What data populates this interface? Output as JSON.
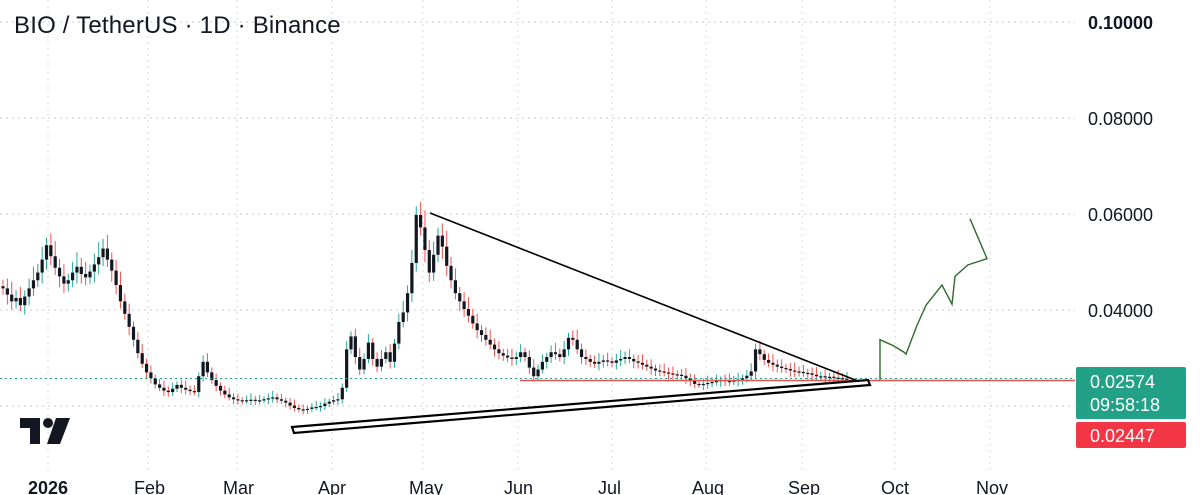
{
  "title": "BIO / TetherUS · 1D · Binance",
  "colors": {
    "up": "#26a69a",
    "down": "#ef5350",
    "wick": "#000000",
    "price_badge": "#22a186",
    "alert_badge": "#f23645",
    "support": "#e05555",
    "trendline": "#000000",
    "projection": "#2e6b2e"
  },
  "price_badge": {
    "price": "0.02574",
    "countdown": "09:58:18"
  },
  "alert_badge": {
    "price": "0.02447"
  },
  "logo": "TV",
  "chart_data": {
    "type": "candlestick",
    "ylim": [
      0.016,
      0.1
    ],
    "yticks": [
      {
        "value": 0.1,
        "label": "0.10000",
        "bold": true
      },
      {
        "value": 0.08,
        "label": "0.08000",
        "bold": false
      },
      {
        "value": 0.06,
        "label": "0.06000",
        "bold": false
      },
      {
        "value": 0.04,
        "label": "0.04000",
        "bold": false
      }
    ],
    "xticks": [
      {
        "label": "2026",
        "bold": true
      },
      {
        "label": "Feb",
        "bold": false
      },
      {
        "label": "Mar",
        "bold": false
      },
      {
        "label": "Apr",
        "bold": false
      },
      {
        "label": "May",
        "bold": false
      },
      {
        "label": "Jun",
        "bold": false
      },
      {
        "label": "Jul",
        "bold": false
      },
      {
        "label": "Aug",
        "bold": false
      },
      {
        "label": "Sep",
        "bold": false
      },
      {
        "label": "Oct",
        "bold": false
      },
      {
        "label": "Nov",
        "bold": false
      }
    ],
    "grid": true,
    "close_series": [
      0.0445,
      0.0432,
      0.0418,
      0.0425,
      0.041,
      0.0428,
      0.0445,
      0.0462,
      0.0478,
      0.0505,
      0.0535,
      0.0512,
      0.0488,
      0.047,
      0.0455,
      0.0462,
      0.0478,
      0.049,
      0.0475,
      0.0468,
      0.048,
      0.0495,
      0.051,
      0.0528,
      0.0505,
      0.0482,
      0.0452,
      0.0418,
      0.0392,
      0.0365,
      0.0338,
      0.031,
      0.0288,
      0.027,
      0.0258,
      0.0245,
      0.0238,
      0.0232,
      0.0229,
      0.0236,
      0.0244,
      0.0238,
      0.0234,
      0.0231,
      0.0229,
      0.0262,
      0.0292,
      0.027,
      0.0254,
      0.0242,
      0.0232,
      0.0224,
      0.0218,
      0.0214,
      0.0212,
      0.0211,
      0.0212,
      0.0213,
      0.0211,
      0.0212,
      0.0214,
      0.0216,
      0.0218,
      0.0214,
      0.0211,
      0.0207,
      0.0201,
      0.0196,
      0.0193,
      0.0192,
      0.0194,
      0.0197,
      0.0198,
      0.02,
      0.0205,
      0.0209,
      0.0212,
      0.0214,
      0.0238,
      0.0318,
      0.0345,
      0.0302,
      0.0276,
      0.0298,
      0.0332,
      0.0298,
      0.0282,
      0.0298,
      0.0312,
      0.0292,
      0.033,
      0.0375,
      0.0395,
      0.0435,
      0.0498,
      0.0598,
      0.0572,
      0.0525,
      0.0478,
      0.0515,
      0.0555,
      0.0532,
      0.0492,
      0.0462,
      0.0435,
      0.0418,
      0.0402,
      0.0388,
      0.0372,
      0.0358,
      0.0348,
      0.0338,
      0.0328,
      0.0318,
      0.031,
      0.0305,
      0.0301,
      0.0298,
      0.0302,
      0.0312,
      0.0302,
      0.028,
      0.0262,
      0.0276,
      0.0292,
      0.0302,
      0.0312,
      0.0308,
      0.0302,
      0.0318,
      0.0342,
      0.0338,
      0.0318,
      0.0302,
      0.0298,
      0.0292,
      0.0288,
      0.0292,
      0.0295,
      0.0293,
      0.029,
      0.0295,
      0.0298,
      0.0302,
      0.0298,
      0.0293,
      0.029,
      0.0286,
      0.0282,
      0.0278,
      0.0274,
      0.0272,
      0.027,
      0.0268,
      0.0266,
      0.0265,
      0.0263,
      0.0258,
      0.0252,
      0.0246,
      0.0245,
      0.0246,
      0.0248,
      0.025,
      0.0252,
      0.0254,
      0.0252,
      0.0251,
      0.0253,
      0.0255,
      0.0258,
      0.0263,
      0.0272,
      0.0318,
      0.0308,
      0.0296,
      0.029,
      0.0286,
      0.0282,
      0.0279,
      0.0277,
      0.0274,
      0.0272,
      0.0271,
      0.0269,
      0.0268,
      0.0265,
      0.0262,
      0.0262,
      0.026,
      0.0261,
      0.0259,
      0.0258,
      0.0257,
      0.0257
    ],
    "support_line": 0.0253,
    "current_price": 0.02574,
    "projection_path": [
      [
        0.0255,
        0.0338
      ],
      [
        0.0314,
        0.0324
      ],
      [
        0.0349,
        0.0308
      ],
      [
        0.0321,
        0.041
      ],
      [
        0.0343,
        0.0452
      ],
      [
        0.04,
        0.047
      ],
      [
        0.0435,
        0.0494
      ],
      [
        0.0595,
        0.048
      ]
    ]
  }
}
